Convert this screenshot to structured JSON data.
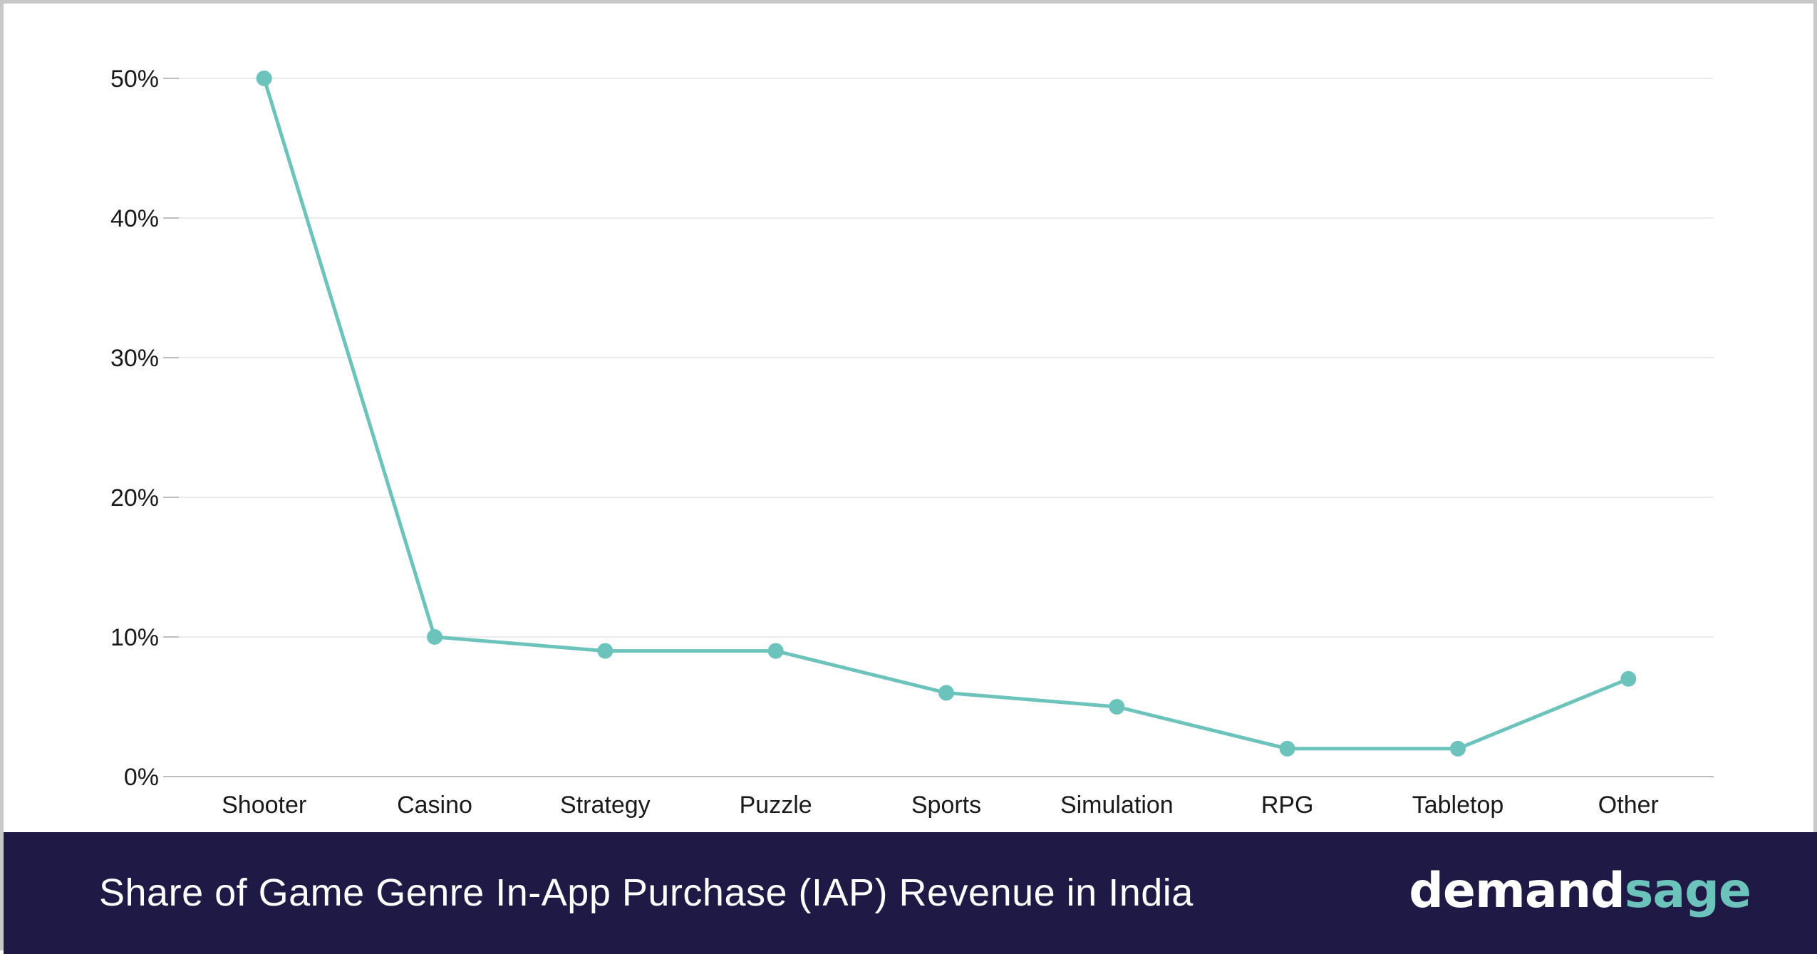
{
  "chart_data": {
    "type": "line",
    "title": "Share of Game Genre In-App Purchase (IAP) Revenue in India",
    "categories": [
      "Shooter",
      "Casino",
      "Strategy",
      "Puzzle",
      "Sports",
      "Simulation",
      "RPG",
      "Tabletop",
      "Other"
    ],
    "series": [
      {
        "values": [
          50,
          10,
          9,
          9,
          6,
          5,
          2,
          2,
          7
        ]
      }
    ],
    "y_ticks": [
      "0%",
      "10%",
      "20%",
      "30%",
      "40%",
      "50%"
    ],
    "ylim": [
      0,
      50
    ],
    "grid": true,
    "legend": "none",
    "colors": {
      "line": "#6cc3bb",
      "grid": "#e6e6e6",
      "axis": "#bdbdbd"
    }
  },
  "footer": {
    "title": "Share of Game Genre In-App Purchase (IAP) Revenue in India",
    "brand_part1": "demand",
    "brand_part2": "sage",
    "background": "#1f1a45"
  }
}
